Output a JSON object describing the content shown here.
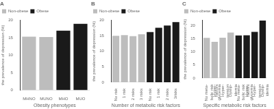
{
  "chart_data": [
    {
      "type": "bar",
      "title": "A",
      "x_label": "Obesity phenotypes",
      "y_label": "the prevalence of depression (%)",
      "categories": [
        "MHNO",
        "MUNO",
        "MHO",
        "MUO"
      ],
      "series": [
        {
          "name": "Non-obese",
          "color": "#bdbdbd",
          "values": [
            15.3,
            15.2,
            null,
            null
          ]
        },
        {
          "name": "Obese",
          "color": "#1a1a1a",
          "values": [
            null,
            null,
            17.0,
            19.0
          ]
        }
      ],
      "ylim": [
        0,
        20
      ],
      "yticks": [
        0,
        5,
        10,
        15,
        20
      ],
      "legend": "top-left"
    },
    {
      "type": "bar",
      "title": "B",
      "x_label": "Number of metabolic risk factors",
      "y_label": "the prevalence of depression (%)",
      "categories": [
        "No risk",
        "1 risk",
        "2 risks",
        "3 risks",
        "No risk",
        "1 risk",
        "2 risks",
        "3risks"
      ],
      "series": [
        {
          "name": "Non-obese",
          "color": "#bdbdbd",
          "values": [
            15.0,
            15.2,
            14.9,
            15.5,
            null,
            null,
            null,
            null
          ]
        },
        {
          "name": "Obese",
          "color": "#1a1a1a",
          "values": [
            null,
            null,
            null,
            null,
            16.2,
            17.6,
            18.3,
            19.4
          ]
        }
      ],
      "ylim": [
        0,
        20
      ],
      "yticks": [
        0,
        5,
        10,
        15,
        20
      ],
      "legend": "top-left"
    },
    {
      "type": "bar",
      "title": "C",
      "x_label": "Specific metabolic risk factors",
      "y_label": "the prevalence of depression (%)",
      "categories": [
        [
          "No meta-",
          "bolic risk",
          "factors"
        ],
        [
          "Hyper-",
          "glycemia"
        ],
        [
          "Hyper-",
          "tension"
        ],
        [
          "Dyslip-",
          "idemia"
        ],
        [
          "No meta-",
          "bolic risk",
          "factors"
        ],
        [
          "Hyper-",
          "glycemia"
        ],
        [
          "Hyper-",
          "tension"
        ],
        [
          "Dyslip-",
          "idemia"
        ]
      ],
      "series": [
        {
          "name": "Non-obese",
          "color": "#bdbdbd",
          "values": [
            15.3,
            13.8,
            15.4,
            17.3,
            null,
            null,
            null,
            null
          ]
        },
        {
          "name": "Obese",
          "color": "#1a1a1a",
          "values": [
            null,
            null,
            null,
            null,
            16.2,
            16.3,
            17.6,
            21.9
          ]
        }
      ],
      "ylim": [
        0,
        22
      ],
      "yticks": [
        0,
        5,
        10,
        15,
        20
      ],
      "legend": "top-left"
    }
  ]
}
